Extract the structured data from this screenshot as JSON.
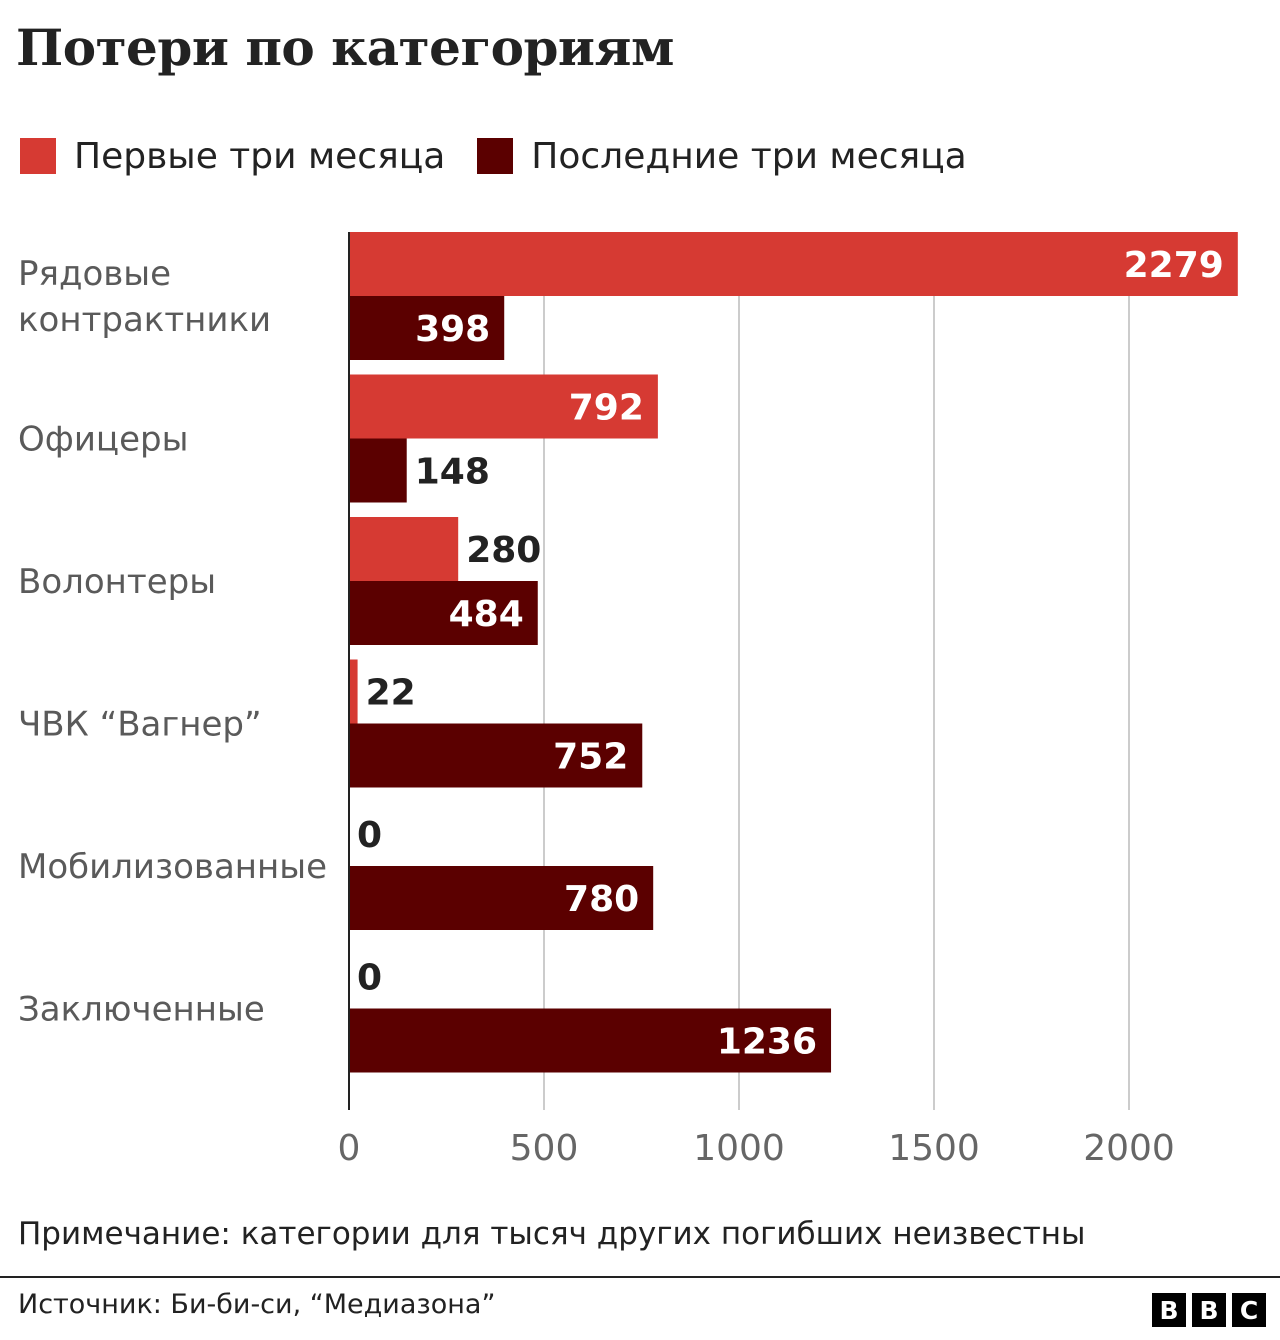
{
  "title": "Потери по категориям",
  "note": "Примечание: категории для тысяч других погибших неизвестны",
  "source": "Источник: Би-би-си, “Медиазона”",
  "logo": [
    "B",
    "B",
    "C"
  ],
  "colors": {
    "first": "#d63a33",
    "last": "#5b0000",
    "grid": "#cccccc",
    "axis": "#222222",
    "label": "#5a5a5a"
  },
  "chart_data": {
    "type": "bar",
    "orientation": "horizontal",
    "categories": [
      "Рядовые контрактники",
      "Офицеры",
      "Волонтеры",
      "ЧВК “Вагнер”",
      "Мобилизованные",
      "Заключенные"
    ],
    "category_lines": [
      [
        "Рядовые",
        "контрактники"
      ],
      [
        "Офицеры"
      ],
      [
        "Волонтеры"
      ],
      [
        "ЧВК “Вагнер”"
      ],
      [
        "Мобилизованные"
      ],
      [
        "Заключенные"
      ]
    ],
    "series": [
      {
        "name": "Первые три месяца",
        "values": [
          2279,
          792,
          280,
          22,
          0,
          0
        ]
      },
      {
        "name": "Последние три месяца",
        "values": [
          398,
          148,
          484,
          752,
          780,
          1236
        ]
      }
    ],
    "xlim": [
      0,
      2300
    ],
    "xticks": [
      0,
      500,
      1000,
      1500,
      2000
    ],
    "grid": true,
    "legend": "top-left",
    "xlabel": "",
    "ylabel": ""
  }
}
